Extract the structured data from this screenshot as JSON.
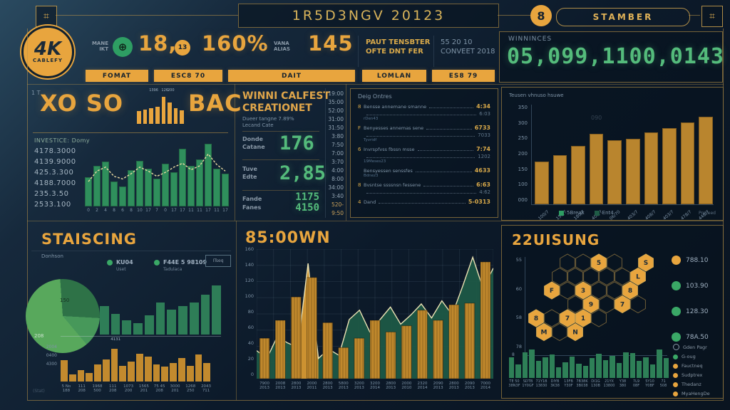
{
  "colors": {
    "accent_gold": "#e8a53e",
    "ochre_bar": "#b9852e",
    "green_bar": "#2f8f5c",
    "dark_green_bar": "#2e7d57",
    "big_green": "#54bb7b",
    "panel_line": "#be9448",
    "area_green": "#1d5846",
    "cream_line": "#ece3b4"
  },
  "header": {
    "title": "1R5D3NGV 20123",
    "badge_number": "8",
    "badge_label": "STAMBER"
  },
  "topbar": {
    "logo_line1": "4K",
    "logo_line2": "CABLEFY",
    "stat1_label1": "MANE",
    "stat1_label2": "IKT",
    "stat1_value": "18,",
    "stat2_badge": "13",
    "stat2_value": "160%",
    "stat3_dash": "-",
    "stat3_label1": "VANA",
    "stat3_label2": "ALIAS",
    "stat3_value": "145",
    "info1_line1": "PAUT TENSBTER",
    "info1_line2": "OFTE DNT FER",
    "info2_line1": "55 20 10",
    "info2_line2": "CONVEET 2018",
    "winnings_label": "WINNINCES",
    "winnings_value": "05,099,1100,0143"
  },
  "tabs": [
    {
      "label": "FOMAT"
    },
    {
      "label": "ESC8 70"
    },
    {
      "label": "DAIT"
    },
    {
      "label": "LOMLAN"
    },
    {
      "label": "ES8 79"
    }
  ],
  "panels": {
    "xoso": {
      "axis_mark": "1 T",
      "title_left": "XO SO",
      "title_right": "BAC",
      "list_header": "INVESTICE:  Domy",
      "list_values": [
        "4178.3000",
        "4139.9000",
        "425.3.300",
        "4188.7000",
        "235.3.50",
        "2533.100"
      ]
    },
    "winni": {
      "title1": "WINNI CALFEST",
      "title2": "CREATIONET",
      "sub1": "Dueer tangne 7.89%",
      "sub2": "Lecand Cate",
      "rows": [
        {
          "l1": "Donde",
          "l2": "Catane",
          "v": "176"
        },
        {
          "l1": "Tuve",
          "l2": "Edte",
          "v": "2,85"
        },
        {
          "l1": "Fande",
          "l2": "Fanes",
          "v": "1175",
          "v2": "4150"
        }
      ],
      "times": [
        "19:00",
        "35:00",
        "52:00",
        "31:00",
        "31:50",
        "3:80",
        "7:50",
        "7:00",
        "3:70",
        "4:00",
        "8:00",
        "34:00",
        "3:40",
        "520-",
        "9:50"
      ]
    },
    "entries": {
      "header": "Deig Ontres",
      "rows": [
        {
          "marker": "8",
          "text": "Bensse annemane smanne",
          "value": "4:34",
          "value2": "6:03",
          "sub": "rDen43"
        },
        {
          "marker": "F",
          "text": "Benyesses annemas sene",
          "value": "6733",
          "value2": "7033",
          "sub": "Tyvridf"
        },
        {
          "marker": "6",
          "text": "Invrspfvss fbssn msse",
          "value": "7:74",
          "value2": "1202",
          "sub": "19Meses23"
        },
        {
          "marker": "",
          "text": "Bensyessen senssfes",
          "value": "4633",
          "value2": "",
          "sub": "Bdnez3"
        },
        {
          "marker": "8",
          "text": "Bvsntse ssssnsn fessene",
          "value": "6:63",
          "value2": "4:62",
          "sub": ""
        },
        {
          "marker": "4",
          "text": "Dand",
          "value": "5-0313",
          "value2": "",
          "sub": ""
        }
      ]
    },
    "daily": {
      "title": "Teusen vhnuso hsuwe",
      "watermark": "090",
      "corner": "Proceed"
    },
    "staiscing": {
      "title": "STAISCING",
      "sub": "Donhson",
      "legend": [
        {
          "label": "KU04",
          "sub": "Uset"
        },
        {
          "label": "F44E 5 98109",
          "sub": "Tadulaca"
        }
      ],
      "box": "ITseq",
      "corner": "(Stat)",
      "top_label": "4131"
    },
    "area": {
      "title": "85:00WN"
    },
    "hex": {
      "title": "22UISUNG",
      "axis_tick": "8",
      "legend": [
        {
          "color": "#e8a53e",
          "label": "788.10"
        },
        {
          "color": "#3aa866",
          "label": "103.90"
        },
        {
          "color": "#3aa866",
          "label": "128.30"
        },
        {
          "color": "#3aa866",
          "label": "78A.50"
        }
      ],
      "legend2": [
        {
          "type": "outline",
          "color": "",
          "label": "Gden Pagr"
        },
        {
          "type": "dot",
          "color": "#3aa866",
          "label": "G-oug"
        },
        {
          "type": "dot",
          "color": "#e8a53e",
          "label": "Fauctneq"
        },
        {
          "type": "dot",
          "color": "#e8a53e",
          "label": "Sudptrex"
        },
        {
          "type": "dot",
          "color": "#e8a53e",
          "label": "Thedanz"
        },
        {
          "type": "dot",
          "color": "#e8a53e",
          "label": "MyaHengDe"
        }
      ]
    }
  },
  "chart_data": {
    "spark": {
      "type": "bar",
      "values": [
        18,
        20,
        22,
        24,
        38,
        30,
        22,
        19
      ],
      "labels": [
        {
          "index": 2,
          "text": "1396"
        },
        {
          "index": 4,
          "text": "126"
        },
        {
          "index": 5,
          "text": "200"
        }
      ],
      "color": "#e8a53e"
    },
    "xoso": {
      "type": "bar",
      "color": "#2f8f5c",
      "line_color": "#e8d9a0",
      "ylim": [
        0,
        100
      ],
      "categories": [
        "0",
        "2",
        "4",
        "8",
        "6",
        "8",
        "10",
        "17",
        "7",
        "0",
        "17",
        "17",
        "11",
        "11",
        "17",
        "11",
        "17"
      ],
      "values": [
        45,
        62,
        68,
        38,
        30,
        55,
        70,
        58,
        42,
        65,
        52,
        88,
        62,
        72,
        96,
        58,
        50
      ],
      "line": [
        38,
        54,
        60,
        46,
        42,
        50,
        60,
        54,
        46,
        52,
        60,
        66,
        56,
        62,
        80,
        64,
        54
      ]
    },
    "daily": {
      "type": "bar",
      "color": "#b9852e",
      "ylim": [
        0,
        350
      ],
      "yticks": [
        "350",
        "300",
        "250",
        "200",
        "150",
        "100",
        "000"
      ],
      "categories": [
        "100/7",
        "150/7",
        "180/7",
        "400/7",
        "06/70",
        "403/7",
        "408/7",
        "403/7",
        "478/7",
        "448/7"
      ],
      "values": [
        150,
        172,
        205,
        248,
        226,
        229,
        252,
        268,
        288,
        308
      ],
      "legend": [
        {
          "label": "5Break",
          "color": "#2e9e63"
        },
        {
          "label": "Ent4",
          "color": "#1f5b46"
        }
      ]
    },
    "stais_pie": {
      "type": "pie",
      "start_deg": 140,
      "slices": [
        {
          "label": "150",
          "value": 60,
          "color": "#58a85c"
        },
        {
          "label": "208",
          "value": 27,
          "color": "#2e7247"
        },
        {
          "label": "",
          "value": 13,
          "color": "#47985a"
        }
      ]
    },
    "stais_upper": {
      "type": "bar",
      "color": "#2e7d57",
      "ylim": [
        0,
        100
      ],
      "values": [
        55,
        40,
        28,
        22,
        38,
        62,
        48,
        55,
        62,
        78,
        96
      ]
    },
    "stais_lower": {
      "type": "bar",
      "color": "#c28a2e",
      "ylim": [
        0,
        100
      ],
      "top_label_index": 6,
      "yticks": [
        "2004",
        "0400",
        "4300"
      ],
      "values": [
        55,
        18,
        30,
        22,
        45,
        58,
        85,
        40,
        52,
        72,
        64,
        45,
        38,
        48,
        62,
        40,
        70,
        48
      ],
      "labels": [
        [
          "5 No",
          "188"
        ],
        [
          "111",
          "208"
        ],
        [
          "1968",
          "500"
        ],
        [
          "111",
          "208"
        ],
        [
          "1073",
          "200"
        ],
        [
          "1565",
          "201"
        ],
        [
          "75 45",
          "208"
        ],
        [
          "3000",
          "201"
        ],
        [
          "1268",
          "250"
        ],
        [
          "2043",
          "711"
        ]
      ]
    },
    "area": {
      "type": "area+bar",
      "area_color": "#1d5846",
      "line_color": "#ece3b4",
      "bar_color": "#c0882c",
      "spike_color": "#cc9231",
      "ylim": [
        0,
        160
      ],
      "yticks": [
        "160",
        "140",
        "120",
        "100",
        "80",
        "60",
        "40",
        "20",
        "0"
      ],
      "line_points": [
        36,
        26,
        54,
        46,
        40,
        148,
        26,
        38,
        30,
        76,
        88,
        60,
        76,
        92,
        70,
        82,
        96,
        78,
        100,
        82,
        118,
        156,
        116,
        142
      ],
      "bar_values": [
        52,
        75,
        105,
        130,
        72,
        40,
        52,
        75,
        60,
        68,
        88,
        75,
        95,
        97,
        150
      ],
      "bar_labels": [
        [
          "7900",
          "2013"
        ],
        [
          "2008",
          "2013"
        ],
        [
          "2800",
          "2013"
        ],
        [
          "2000",
          "2011"
        ],
        [
          "2800",
          "2013"
        ],
        [
          "5800",
          "2013"
        ],
        [
          "3200",
          "2013"
        ],
        [
          "3200",
          "2014"
        ],
        [
          "2800",
          "2013"
        ],
        [
          "2000",
          "2010"
        ],
        [
          "2320",
          "2014"
        ],
        [
          "2090",
          "2013"
        ],
        [
          "2800",
          "2013"
        ],
        [
          "2090",
          "2013"
        ],
        [
          "7000",
          "2014"
        ]
      ]
    },
    "hex": {
      "type": "heatmap",
      "ylabels": [
        "55",
        "60",
        "58",
        "78"
      ],
      "rows": [
        [
          2,
          5
        ],
        [
          1,
          6
        ],
        [
          1,
          6
        ],
        [
          2,
          6
        ],
        [
          0,
          4
        ],
        [
          0,
          2
        ]
      ],
      "highlights": [
        [
          0,
          4,
          "5"
        ],
        [
          0,
          7,
          "S"
        ],
        [
          1,
          6,
          "L"
        ],
        [
          2,
          1,
          "F"
        ],
        [
          2,
          3,
          "3"
        ],
        [
          2,
          6,
          "8"
        ],
        [
          3,
          3,
          "9"
        ],
        [
          3,
          5,
          "7"
        ],
        [
          4,
          0,
          "8"
        ],
        [
          4,
          2,
          "7"
        ],
        [
          4,
          3,
          "1"
        ],
        [
          5,
          0,
          "M"
        ],
        [
          5,
          2,
          "N"
        ]
      ]
    },
    "hex_bars": {
      "type": "bar",
      "color": "#2e8057",
      "ylim": [
        0,
        100
      ],
      "values": [
        58,
        38,
        72,
        80,
        48,
        58,
        66,
        30,
        45,
        60,
        40,
        34,
        56,
        68,
        50,
        62,
        42,
        72,
        70,
        48,
        58,
        38,
        80,
        56
      ],
      "labels": [
        [
          "TE 50",
          "38N3F"
        ],
        [
          "SDTB",
          "1Y0GF"
        ],
        [
          "71Y1B",
          "13830"
        ],
        [
          "DIYB",
          "3K38"
        ],
        [
          "13FB",
          "Y30F"
        ],
        [
          "7B38K",
          "3B038"
        ],
        [
          "DI1G",
          "130B"
        ],
        [
          "21YX",
          "13800"
        ],
        [
          "Y38",
          "380"
        ],
        [
          "7L9",
          "08F"
        ],
        [
          "5Y10",
          "Y0BF"
        ],
        [
          "71",
          "508"
        ]
      ]
    }
  }
}
